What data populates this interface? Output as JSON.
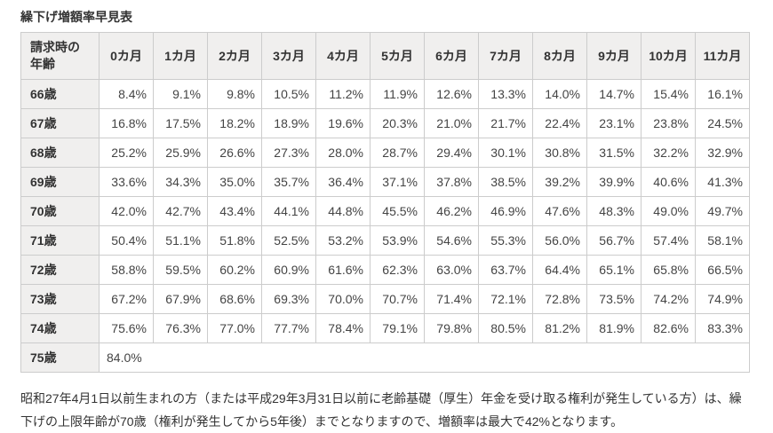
{
  "colors": {
    "header_bg": "#f0efee",
    "border": "#cccccc",
    "text": "#333333"
  },
  "page": {
    "title": "繰下げ増額率早見表",
    "footer_note": "昭和27年4月1日以前生まれの方（または平成29年3月31日以前に老齢基礎（厚生）年金を受け取る権利が発生している方）は、繰下げの上限年齢が70歳（権利が発生してから5年後）までとなりますので、増額率は最大で42%となります。"
  },
  "table": {
    "age_header_lines": [
      "請求時の",
      "年齢"
    ],
    "month_headers": [
      "0カ月",
      "1カ月",
      "2カ月",
      "3カ月",
      "4カ月",
      "5カ月",
      "6カ月",
      "7カ月",
      "8カ月",
      "9カ月",
      "10カ月",
      "11カ月"
    ],
    "rows": [
      {
        "age": "66歳",
        "values": [
          "8.4%",
          "9.1%",
          "9.8%",
          "10.5%",
          "11.2%",
          "11.9%",
          "12.6%",
          "13.3%",
          "14.0%",
          "14.7%",
          "15.4%",
          "16.1%"
        ]
      },
      {
        "age": "67歳",
        "values": [
          "16.8%",
          "17.5%",
          "18.2%",
          "18.9%",
          "19.6%",
          "20.3%",
          "21.0%",
          "21.7%",
          "22.4%",
          "23.1%",
          "23.8%",
          "24.5%"
        ]
      },
      {
        "age": "68歳",
        "values": [
          "25.2%",
          "25.9%",
          "26.6%",
          "27.3%",
          "28.0%",
          "28.7%",
          "29.4%",
          "30.1%",
          "30.8%",
          "31.5%",
          "32.2%",
          "32.9%"
        ]
      },
      {
        "age": "69歳",
        "values": [
          "33.6%",
          "34.3%",
          "35.0%",
          "35.7%",
          "36.4%",
          "37.1%",
          "37.8%",
          "38.5%",
          "39.2%",
          "39.9%",
          "40.6%",
          "41.3%"
        ]
      },
      {
        "age": "70歳",
        "values": [
          "42.0%",
          "42.7%",
          "43.4%",
          "44.1%",
          "44.8%",
          "45.5%",
          "46.2%",
          "46.9%",
          "47.6%",
          "48.3%",
          "49.0%",
          "49.7%"
        ]
      },
      {
        "age": "71歳",
        "values": [
          "50.4%",
          "51.1%",
          "51.8%",
          "52.5%",
          "53.2%",
          "53.9%",
          "54.6%",
          "55.3%",
          "56.0%",
          "56.7%",
          "57.4%",
          "58.1%"
        ]
      },
      {
        "age": "72歳",
        "values": [
          "58.8%",
          "59.5%",
          "60.2%",
          "60.9%",
          "61.6%",
          "62.3%",
          "63.0%",
          "63.7%",
          "64.4%",
          "65.1%",
          "65.8%",
          "66.5%"
        ]
      },
      {
        "age": "73歳",
        "values": [
          "67.2%",
          "67.9%",
          "68.6%",
          "69.3%",
          "70.0%",
          "70.7%",
          "71.4%",
          "72.1%",
          "72.8%",
          "73.5%",
          "74.2%",
          "74.9%"
        ]
      },
      {
        "age": "74歳",
        "values": [
          "75.6%",
          "76.3%",
          "77.0%",
          "77.7%",
          "78.4%",
          "79.1%",
          "79.8%",
          "80.5%",
          "81.2%",
          "81.9%",
          "82.6%",
          "83.3%"
        ]
      },
      {
        "age": "75歳",
        "values": [
          "84.0%"
        ]
      }
    ]
  }
}
